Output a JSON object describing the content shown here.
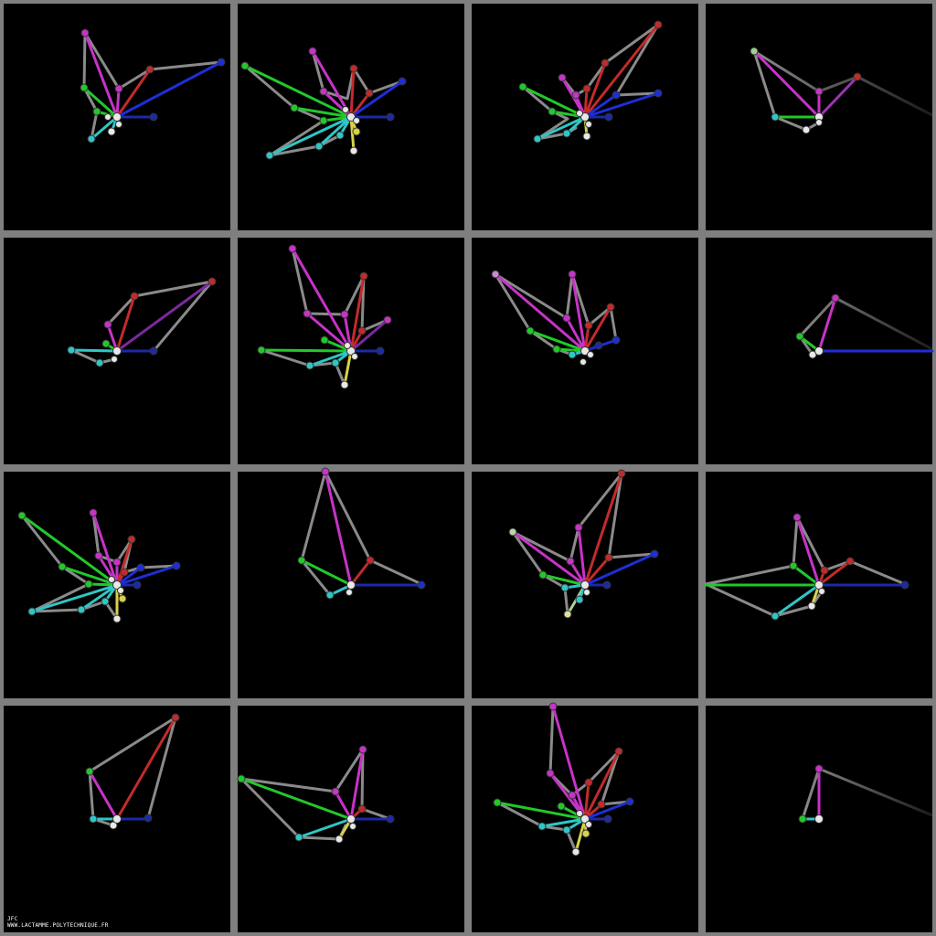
{
  "credit": {
    "initials": "JFC",
    "url": "WWW.LACTAMME.POLYTECHNIQUE.FR"
  },
  "colors": {
    "frame": "#7f7f7f",
    "panel": "#000000",
    "gray": "#8a8a8a",
    "magenta": "#c733c7",
    "red": "#c22b2b",
    "blue": "#1d2fd6",
    "navy": "#1b2aa6",
    "green": "#22c82a",
    "cyan": "#2ec6c6",
    "yellow": "#d7d24a",
    "white": "#e8e8e8"
  }
}
